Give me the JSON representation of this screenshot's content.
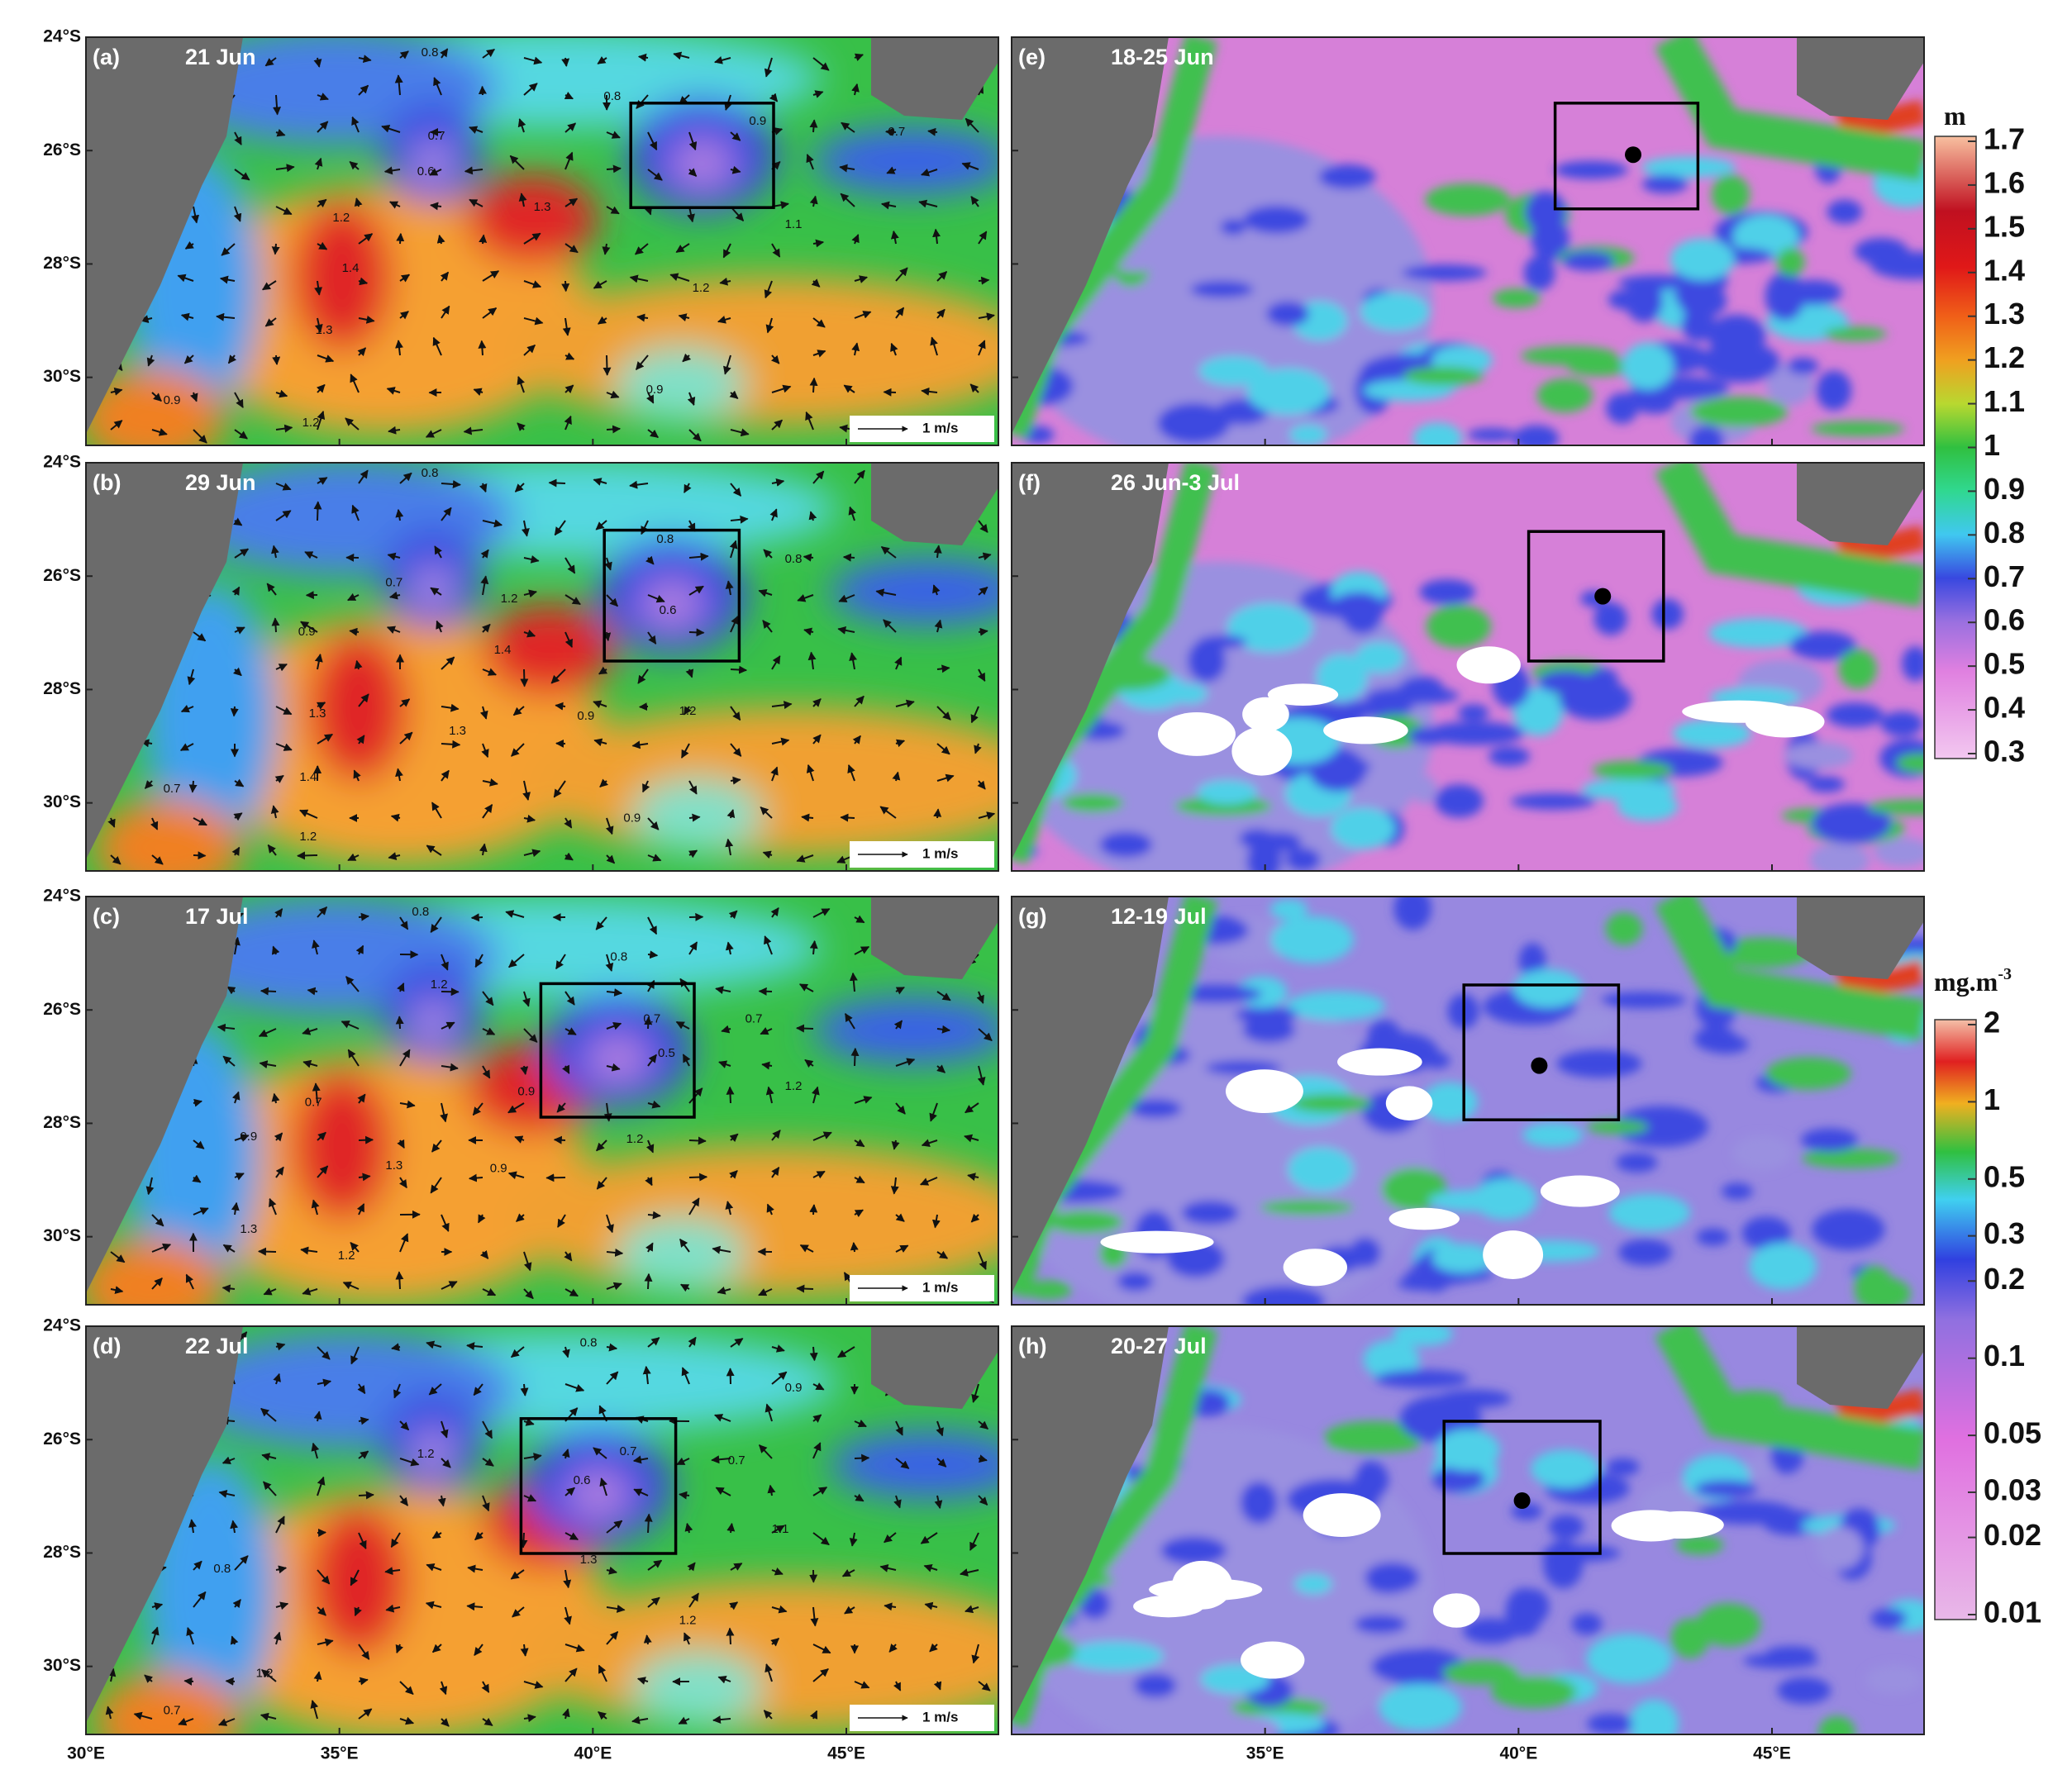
{
  "panels": [
    {
      "label": "(a)",
      "date": "21 Jun",
      "contours": [
        "0.8",
        "0.7",
        "0.6",
        "0.8",
        "0.9",
        "0.7",
        "1.2",
        "1.3",
        "1.4",
        "1.3",
        "1.2",
        "1.1",
        "0.9",
        "1.2",
        "0.9"
      ]
    },
    {
      "label": "(b)",
      "date": "29 Jun",
      "contours": [
        "0.8",
        "0.7",
        "0.8",
        "0.6",
        "0.8",
        "0.9",
        "1.2",
        "1.4",
        "1.3",
        "1.4",
        "1.3",
        "0.9",
        "1.2",
        "0.7",
        "1.2",
        "0.9"
      ]
    },
    {
      "label": "(c)",
      "date": "17 Jul",
      "contours": [
        "0.8",
        "0.8",
        "0.7",
        "0.5",
        "0.9",
        "0.7",
        "0.7",
        "1.2",
        "1.2",
        "1.2",
        "1.3",
        "0.9",
        "1.3",
        "1.2",
        "0.9"
      ]
    },
    {
      "label": "(d)",
      "date": "22 Jul",
      "contours": [
        "0.8",
        "0.9",
        "0.7",
        "0.6",
        "0.7",
        "1.2",
        "1.3",
        "1.2",
        "0.8",
        "1.2",
        "1.1",
        "0.7"
      ]
    },
    {
      "label": "(e)",
      "date": "18-25 Jun"
    },
    {
      "label": "(f)",
      "date": "26 Jun-3 Jul"
    },
    {
      "label": "(g)",
      "date": "12-19 Jul"
    },
    {
      "label": "(h)",
      "date": "20-27 Jul"
    }
  ],
  "ylim": [
    -31.2,
    -24
  ],
  "yticks": [
    {
      "value": -24,
      "label": "24°S"
    },
    {
      "value": -26,
      "label": "26°S"
    },
    {
      "value": -28,
      "label": "28°S"
    },
    {
      "value": -30,
      "label": "30°S"
    }
  ],
  "xlim": [
    30,
    48
  ],
  "xticks": [
    {
      "value": 30,
      "label": "30°E"
    },
    {
      "value": 35,
      "label": "35°E"
    },
    {
      "value": 40,
      "label": "40°E"
    },
    {
      "value": 45,
      "label": "45°E"
    }
  ],
  "scale_arrow_label": "1 m/s",
  "colorbar_ssh": {
    "unit": "m",
    "lim": [
      0.3,
      1.7
    ],
    "ticks": [
      1.7,
      1.6,
      1.5,
      1.4,
      1.3,
      1.2,
      1.1,
      1,
      0.9,
      0.8,
      0.7,
      0.6,
      0.5,
      0.4,
      0.3
    ]
  },
  "colorbar_chl": {
    "unit": "mg.m",
    "unit_exponent": "-3",
    "log_scale": true,
    "lim": [
      0.01,
      2
    ],
    "ticks": [
      2,
      1,
      0.5,
      0.3,
      0.2,
      0.1,
      0.05,
      0.03,
      0.02,
      0.01
    ]
  }
}
